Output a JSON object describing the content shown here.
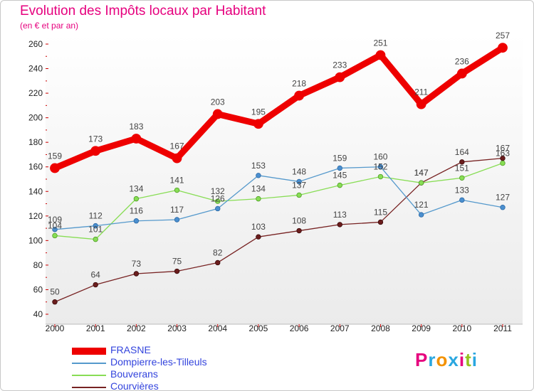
{
  "chart_data": {
    "type": "line",
    "title": "Evolution des Impôts locaux par Habitant",
    "subtitle": "(en € et par an)",
    "xlabel": "",
    "ylabel": "",
    "ylim": [
      40,
      260
    ],
    "yticks": [
      40,
      60,
      80,
      100,
      120,
      140,
      160,
      180,
      200,
      220,
      240,
      260
    ],
    "categories": [
      "2000",
      "2001",
      "2002",
      "2003",
      "2004",
      "2005",
      "2006",
      "2007",
      "2008",
      "2009",
      "2010",
      "2011"
    ],
    "grid": false,
    "legend_position": "bottom-left",
    "series": [
      {
        "name": "FRASNE",
        "color": "#ee0000",
        "values": [
          159,
          173,
          183,
          167,
          203,
          195,
          218,
          233,
          251,
          211,
          236,
          257
        ]
      },
      {
        "name": "Dompierre-les-Tilleuls",
        "color": "#5599cc",
        "values": [
          109,
          112,
          116,
          117,
          126,
          153,
          148,
          159,
          160,
          121,
          133,
          127
        ]
      },
      {
        "name": "Bouverans",
        "color": "#88dd55",
        "values": [
          104,
          101,
          134,
          141,
          132,
          134,
          137,
          145,
          152,
          147,
          151,
          163
        ]
      },
      {
        "name": "Courvières",
        "color": "#772222",
        "values": [
          50,
          64,
          73,
          75,
          82,
          103,
          108,
          113,
          115,
          147,
          164,
          167
        ]
      }
    ],
    "point_labels": [
      [
        "159",
        "173",
        "183",
        "167",
        "203",
        "195",
        "218",
        "233",
        "251",
        "211",
        "236",
        "257"
      ],
      [
        "109",
        "112",
        "116",
        "117",
        "126",
        "153",
        "148",
        "159",
        "160",
        "121",
        "133",
        "127"
      ],
      [
        "104",
        "101",
        "134",
        "141",
        "132",
        "134",
        "137",
        "145",
        "152",
        "147",
        "151",
        "163"
      ],
      [
        "50",
        "64",
        "73",
        "75",
        "82",
        "103",
        "108",
        "113",
        "115",
        "147",
        "164",
        "167"
      ]
    ]
  },
  "logo": {
    "text": "Proxiti",
    "colors": [
      "#e6007e",
      "#2aa7e0",
      "#f39200",
      "#2aa7e0",
      "#e6007e",
      "#95c11f",
      "#2aa7e0"
    ]
  }
}
